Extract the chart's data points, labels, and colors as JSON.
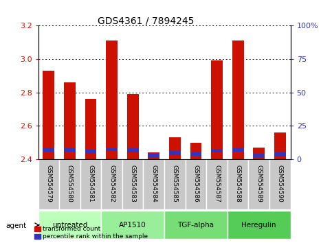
{
  "title": "GDS4361 / 7894245",
  "samples": [
    "GSM554579",
    "GSM554580",
    "GSM554581",
    "GSM554582",
    "GSM554583",
    "GSM554584",
    "GSM554585",
    "GSM554586",
    "GSM554587",
    "GSM554588",
    "GSM554589",
    "GSM554590"
  ],
  "red_values": [
    2.93,
    2.86,
    2.76,
    3.11,
    2.79,
    2.44,
    2.53,
    2.5,
    2.99,
    3.11,
    2.47,
    2.56
  ],
  "blue_bottoms": [
    2.445,
    2.445,
    2.435,
    2.448,
    2.44,
    2.41,
    2.425,
    2.42,
    2.443,
    2.447,
    2.41,
    2.418
  ],
  "blue_tops": [
    2.465,
    2.468,
    2.458,
    2.468,
    2.465,
    2.435,
    2.448,
    2.443,
    2.462,
    2.468,
    2.435,
    2.44
  ],
  "ylim_left": [
    2.4,
    3.2
  ],
  "ylim_right": [
    0,
    100
  ],
  "yticks_left": [
    2.4,
    2.6,
    2.8,
    3.0,
    3.2
  ],
  "yticks_right": [
    0,
    25,
    50,
    75,
    100
  ],
  "ytick_labels_right": [
    "0",
    "25",
    "50",
    "75",
    "100%"
  ],
  "bar_width": 0.55,
  "base_value": 2.4,
  "red_color": "#CC1100",
  "blue_color": "#3333BB",
  "agent_groups": [
    {
      "label": "untreated",
      "start": 0,
      "end": 3,
      "color": "#BBFFBB"
    },
    {
      "label": "AP1510",
      "start": 3,
      "end": 6,
      "color": "#99EE99"
    },
    {
      "label": "TGF-alpha",
      "start": 6,
      "end": 9,
      "color": "#77DD77"
    },
    {
      "label": "Heregulin",
      "start": 9,
      "end": 12,
      "color": "#55CC55"
    }
  ],
  "legend_red": "transformed count",
  "legend_blue": "percentile rank within the sample",
  "xlabel_agent": "agent",
  "tick_bg_color": "#C8C8C8",
  "title_fontsize": 10,
  "tick_fontsize": 6.5,
  "label_fontsize": 7.5,
  "axis_label_fontsize": 7
}
